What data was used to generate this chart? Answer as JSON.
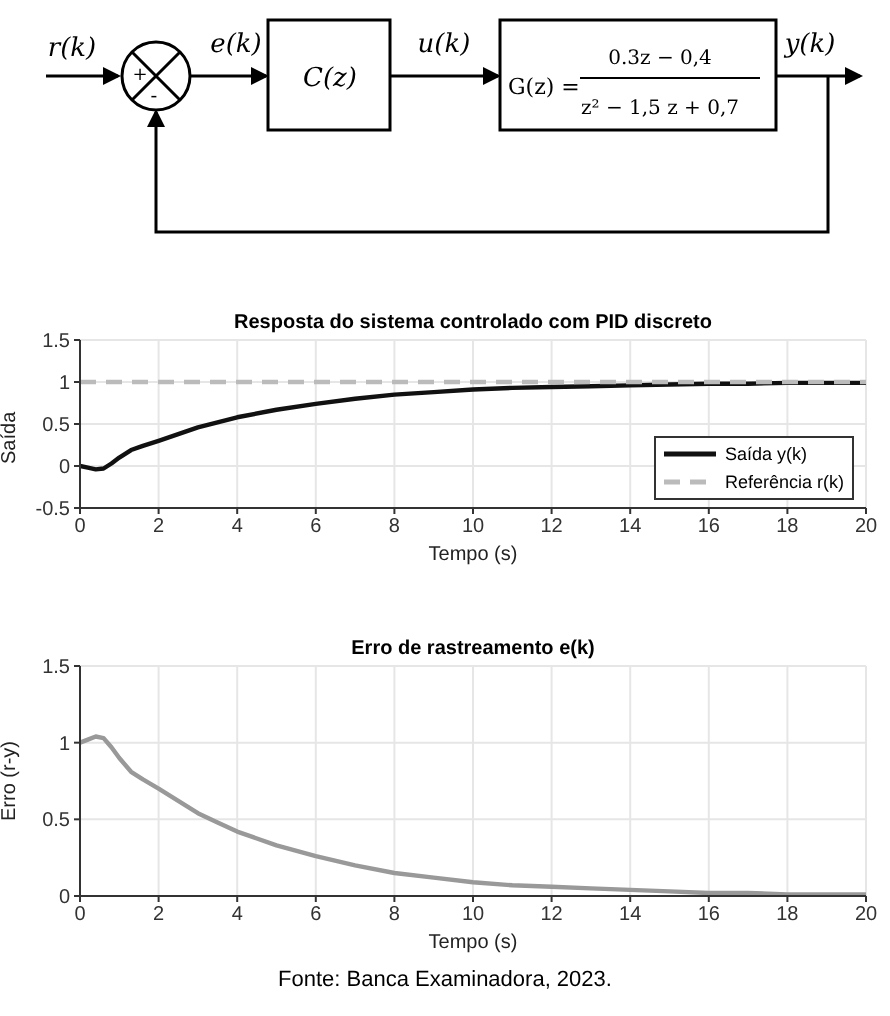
{
  "chart_data": [
    {
      "type": "other",
      "annotations": [
        "r(k)",
        "e(k)",
        "C(z)",
        "u(k)",
        "G(z) =",
        "0.3z − 0,4",
        "z² − 1,5 z + 0,7",
        "y(k)",
        "+",
        "-"
      ]
    },
    {
      "type": "line",
      "title": "Resposta do sistema controlado com PID discreto",
      "xlabel": "Tempo (s)",
      "ylabel": "Saída",
      "x": [
        0,
        0.2,
        0.4,
        0.6,
        0.8,
        1,
        1.3,
        1.6,
        2,
        2.5,
        3,
        3.5,
        4,
        5,
        6,
        7,
        8,
        9,
        10,
        11,
        12,
        13,
        14,
        15,
        16,
        17,
        18,
        19,
        20
      ],
      "series": [
        {
          "name": "Saída y(k)",
          "color": "#111111",
          "line_style": "solid",
          "values": [
            0,
            -0.02,
            -0.04,
            -0.03,
            0.03,
            0.1,
            0.19,
            0.24,
            0.3,
            0.38,
            0.46,
            0.52,
            0.58,
            0.67,
            0.74,
            0.8,
            0.85,
            0.88,
            0.91,
            0.93,
            0.94,
            0.95,
            0.96,
            0.97,
            0.98,
            0.98,
            0.99,
            0.99,
            0.99
          ]
        },
        {
          "name": "Referência r(k)",
          "color": "#bbbbbb",
          "line_style": "dashed",
          "values": [
            1,
            1,
            1,
            1,
            1,
            1,
            1,
            1,
            1,
            1,
            1,
            1,
            1,
            1,
            1,
            1,
            1,
            1,
            1,
            1,
            1,
            1,
            1,
            1,
            1,
            1,
            1,
            1,
            1
          ]
        }
      ],
      "xlim": [
        0,
        20
      ],
      "xticks": [
        0,
        2,
        4,
        6,
        8,
        10,
        12,
        14,
        16,
        18,
        20
      ],
      "ylim": [
        -0.5,
        1.5
      ],
      "yticks": [
        -0.5,
        0,
        0.5,
        1,
        1.5
      ],
      "grid": true,
      "legend": "bottom right",
      "marker": "none"
    },
    {
      "type": "line",
      "title": "Erro de rastreamento e(k)",
      "xlabel": "Tempo (s)",
      "ylabel": "Erro (r-y)",
      "x": [
        0,
        0.2,
        0.4,
        0.6,
        0.8,
        1,
        1.3,
        1.6,
        2,
        2.5,
        3,
        3.5,
        4,
        5,
        6,
        7,
        8,
        9,
        10,
        11,
        12,
        13,
        14,
        15,
        16,
        17,
        18,
        19,
        20
      ],
      "series": [
        {
          "color": "#999999",
          "line_style": "solid",
          "values": [
            1,
            1.02,
            1.04,
            1.03,
            0.97,
            0.9,
            0.81,
            0.76,
            0.7,
            0.62,
            0.54,
            0.48,
            0.42,
            0.33,
            0.26,
            0.2,
            0.15,
            0.12,
            0.09,
            0.07,
            0.06,
            0.05,
            0.04,
            0.03,
            0.02,
            0.02,
            0.01,
            0.01,
            0.01
          ]
        }
      ],
      "xlim": [
        0,
        20
      ],
      "xticks": [
        0,
        2,
        4,
        6,
        8,
        10,
        12,
        14,
        16,
        18,
        20
      ],
      "ylim": [
        0,
        1.5
      ],
      "yticks": [
        0,
        0.5,
        1,
        1.5
      ],
      "grid": true,
      "marker": "none",
      "annotations": [
        "Fonte: Banca Examinadora, 2023."
      ]
    }
  ]
}
